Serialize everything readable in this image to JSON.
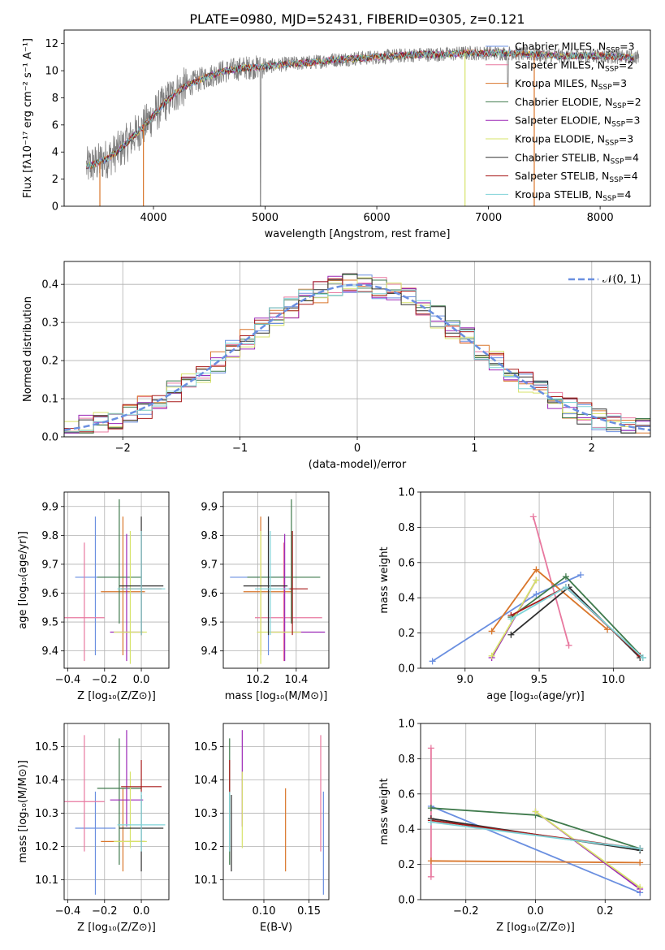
{
  "chart_data": [
    {
      "id": "spectrum",
      "type": "line",
      "title": "PLATE=0980, MJD=52431, FIBERID=0305, z=0.121",
      "xlabel": "wavelength [Angstrom, rest frame]",
      "ylabel": "Flux [fλ10⁻¹⁷ erg cm⁻² s⁻¹ A⁻¹]",
      "xlim": [
        3200,
        8450
      ],
      "ylim": [
        0,
        13
      ],
      "xticks": [
        4000,
        5000,
        6000,
        7000,
        8000
      ],
      "yticks": [
        0,
        2,
        4,
        6,
        8,
        10,
        12
      ],
      "legend_position": "upper right",
      "legend": [
        {
          "name": "Chabrier MILES, N",
          "sub": "SSP",
          "tail": "=3",
          "color": "#6a8fe0"
        },
        {
          "name": "Salpeter MILES, N",
          "sub": "SSP",
          "tail": "=2",
          "color": "#e8789f"
        },
        {
          "name": "Kroupa MILES, N",
          "sub": "SSP",
          "tail": "=3",
          "color": "#d9762b"
        },
        {
          "name": "Chabrier ELODIE, N",
          "sub": "SSP",
          "tail": "=2",
          "color": "#3f7a4c"
        },
        {
          "name": "Salpeter ELODIE, N",
          "sub": "SSP",
          "tail": "=3",
          "color": "#9b26b6"
        },
        {
          "name": "Kroupa ELODIE, N",
          "sub": "SSP",
          "tail": "=3",
          "color": "#d7e36a"
        },
        {
          "name": "Chabrier STELIB, N",
          "sub": "SSP",
          "tail": "=4",
          "color": "#303030"
        },
        {
          "name": "Salpeter STELIB, N",
          "sub": "SSP",
          "tail": "=4",
          "color": "#a81a1a"
        },
        {
          "name": "Kroupa STELIB, N",
          "sub": "SSP",
          "tail": "=4",
          "color": "#7fd3d8"
        }
      ],
      "continuum": {
        "x": [
          3400,
          3500,
          3600,
          3700,
          3800,
          3900,
          4000,
          4100,
          4200,
          4300,
          4400,
          4600,
          4800,
          5000,
          5200,
          5400,
          5600,
          5800,
          6000,
          6200,
          6400,
          6600,
          6800,
          7000,
          7200,
          7400,
          7600,
          7800,
          8000,
          8200,
          8400
        ],
        "y": [
          2.9,
          3.2,
          3.6,
          4.2,
          5.0,
          5.8,
          6.7,
          7.6,
          8.4,
          8.9,
          9.3,
          9.9,
          10.2,
          10.3,
          10.5,
          10.6,
          10.8,
          10.9,
          11.0,
          11.1,
          11.2,
          11.2,
          11.3,
          11.3,
          11.3,
          11.2,
          11.1,
          11.1,
          11.1,
          11.0,
          11.0
        ]
      },
      "data_color": "#808080"
    },
    {
      "id": "residuals",
      "type": "histogram",
      "xlabel": "(data-model)/error",
      "ylabel": "Normed distribution",
      "xlim": [
        -2.5,
        2.5
      ],
      "ylim": [
        0,
        0.46
      ],
      "xticks": [
        -2,
        -1,
        0,
        1,
        2
      ],
      "yticks": [
        0.0,
        0.1,
        0.2,
        0.3,
        0.4
      ],
      "legend_position": "upper right",
      "gaussian_label": "𝒩(0, 1)",
      "gaussian_color": "#6a8fe0",
      "bins": 40
    },
    {
      "id": "age_vs_Z",
      "type": "errorbar",
      "xlabel": "Z [log₁₀(Z/Z⊙)]",
      "ylabel": "age  [log₁₀(age/yr)]",
      "xlim": [
        -0.42,
        0.15
      ],
      "ylim": [
        9.34,
        9.95
      ],
      "xticks": [
        -0.4,
        -0.2,
        0.0
      ],
      "yticks": [
        9.4,
        9.5,
        9.6,
        9.7,
        9.8,
        9.9
      ]
    },
    {
      "id": "age_vs_mass",
      "type": "errorbar",
      "xlabel": "mass [log₁₀(M/M⊙)]",
      "ylabel": "",
      "xlim": [
        10.02,
        10.57
      ],
      "ylim": [
        9.34,
        9.95
      ],
      "xticks": [
        10.2,
        10.4
      ],
      "yticks": [
        9.4,
        9.5,
        9.6,
        9.7,
        9.8,
        9.9
      ]
    },
    {
      "id": "weight_vs_age",
      "type": "line",
      "xlabel": "age  [log₁₀(age/yr)]",
      "ylabel": "mass weight",
      "xlim": [
        8.7,
        10.25
      ],
      "ylim": [
        0,
        1.0
      ],
      "xticks": [
        9.0,
        9.5,
        10.0
      ],
      "yticks": [
        0.0,
        0.2,
        0.4,
        0.6,
        0.8,
        1.0
      ]
    },
    {
      "id": "mass_vs_Z",
      "type": "errorbar",
      "xlabel": "Z [log₁₀(Z/Z⊙)]",
      "ylabel": "mass [log₁₀(M/M⊙)]",
      "xlim": [
        -0.42,
        0.15
      ],
      "ylim": [
        10.04,
        10.57
      ],
      "xticks": [
        -0.4,
        -0.2,
        0.0
      ],
      "yticks": [
        10.1,
        10.2,
        10.3,
        10.4,
        10.5
      ]
    },
    {
      "id": "mass_vs_ebv",
      "type": "errorbar",
      "xlabel": "E(B-V)",
      "ylabel": "",
      "xlim": [
        0.055,
        0.172
      ],
      "ylim": [
        10.04,
        10.57
      ],
      "xticks": [
        0.05,
        0.1,
        0.15
      ],
      "yticks": [
        10.1,
        10.2,
        10.3,
        10.4,
        10.5
      ]
    },
    {
      "id": "weight_vs_Z",
      "type": "line",
      "xlabel": "Z [log₁₀(Z/Z⊙)]",
      "ylabel": "mass weight",
      "xlim": [
        -0.33,
        0.33
      ],
      "ylim": [
        0,
        1.0
      ],
      "xticks": [
        -0.2,
        0.0,
        0.2
      ],
      "yticks": [
        0.0,
        0.2,
        0.4,
        0.6,
        0.8,
        1.0
      ]
    }
  ],
  "fits": [
    {
      "color": "#6a8fe0",
      "Z": -0.25,
      "Zerr": 0.11,
      "age": 9.655,
      "aerr": [
        0.27,
        0.21
      ],
      "mass": 10.255,
      "merr": [
        0.2,
        0.11
      ],
      "ebv": 0.166,
      "weights_age": [
        [
          8.78,
          0.04
        ],
        [
          9.48,
          0.42
        ],
        [
          9.78,
          0.53
        ]
      ],
      "weights_Z": [
        [
          -0.3,
          0.53
        ],
        [
          0.3,
          0.04
        ]
      ]
    },
    {
      "color": "#e8789f",
      "Z": -0.31,
      "Zerr": 0.11,
      "age": 9.515,
      "aerr": [
        0.15,
        0.26
      ],
      "mass": 10.335,
      "merr": [
        0.15,
        0.2
      ],
      "ebv": 0.163,
      "weights_age": [
        [
          9.46,
          0.86
        ],
        [
          9.7,
          0.13
        ]
      ],
      "weights_Z": [
        [
          -0.3,
          0.86
        ],
        [
          -0.3,
          0.13
        ]
      ]
    },
    {
      "color": "#d9762b",
      "Z": -0.1,
      "Zerr": 0.12,
      "age": 9.605,
      "aerr": [
        0.22,
        0.26
      ],
      "mass": 10.215,
      "merr": [
        0.09,
        0.16
      ],
      "ebv": 0.124,
      "weights_age": [
        [
          9.18,
          0.21
        ],
        [
          9.48,
          0.56
        ],
        [
          9.96,
          0.22
        ]
      ],
      "weights_Z": [
        [
          -0.3,
          0.22
        ],
        [
          0.3,
          0.21
        ]
      ]
    },
    {
      "color": "#3f7a4c",
      "Z": -0.12,
      "Zerr": 0.12,
      "age": 9.655,
      "aerr": [
        0.16,
        0.27
      ],
      "mass": 10.375,
      "merr": [
        0.23,
        0.15
      ],
      "ebv": 0.062,
      "weights_age": [
        [
          9.31,
          0.29
        ],
        [
          9.68,
          0.52
        ],
        [
          10.2,
          0.06
        ]
      ],
      "weights_Z": [
        [
          -0.3,
          0.52
        ],
        [
          0.0,
          0.48
        ],
        [
          0.3,
          0.29
        ]
      ]
    },
    {
      "color": "#9b26b6",
      "Z": -0.08,
      "Zerr": 0.09,
      "age": 9.465,
      "aerr": [
        0.1,
        0.34
      ],
      "mass": 10.34,
      "merr": [
        0.08,
        0.21
      ],
      "ebv": 0.076,
      "weights_age": [
        [
          9.18,
          0.06
        ],
        [
          9.48,
          0.5
        ]
      ],
      "weights_Z": [
        [
          0.0,
          0.5
        ],
        [
          0.3,
          0.06
        ]
      ]
    },
    {
      "color": "#d7e36a",
      "Z": -0.06,
      "Zerr": 0.09,
      "age": 9.465,
      "aerr": [
        0.11,
        0.35
      ],
      "mass": 10.215,
      "merr": [
        0.02,
        0.21
      ],
      "ebv": 0.076,
      "weights_age": [
        [
          9.18,
          0.07
        ],
        [
          9.48,
          0.5
        ]
      ],
      "weights_Z": [
        [
          0.0,
          0.5
        ],
        [
          0.3,
          0.07
        ]
      ]
    },
    {
      "color": "#303030",
      "Z": 0.0,
      "Zerr": 0.12,
      "age": 9.625,
      "aerr": [
        0.17,
        0.24
      ],
      "mass": 10.255,
      "merr": [
        0.13,
        0.1
      ],
      "ebv": 0.064,
      "weights_age": [
        [
          9.31,
          0.19
        ],
        [
          9.7,
          0.46
        ],
        [
          10.18,
          0.06
        ]
      ],
      "weights_Z": [
        [
          -0.3,
          0.46
        ],
        [
          0.3,
          0.28
        ]
      ]
    },
    {
      "color": "#a81a1a",
      "Z": 0.0,
      "Zerr": 0.11,
      "age": 9.615,
      "aerr": [
        0.16,
        0.2
      ],
      "mass": 10.38,
      "merr": [
        0.02,
        0.08
      ],
      "ebv": 0.062,
      "weights_age": [
        [
          9.31,
          0.3
        ],
        [
          9.68,
          0.46
        ],
        [
          10.18,
          0.07
        ]
      ],
      "weights_Z": [
        [
          -0.3,
          0.45
        ],
        [
          0.3,
          0.29
        ]
      ]
    },
    {
      "color": "#7fd3d8",
      "Z": 0.0,
      "Zerr": 0.13,
      "age": 9.615,
      "aerr": [
        0.16,
        0.2
      ],
      "mass": 10.265,
      "merr": [
        0.08,
        0.1
      ],
      "ebv": 0.062,
      "weights_age": [
        [
          9.31,
          0.28
        ],
        [
          9.68,
          0.46
        ],
        [
          10.2,
          0.06
        ]
      ],
      "weights_Z": [
        [
          -0.3,
          0.44
        ],
        [
          0.3,
          0.29
        ]
      ]
    }
  ]
}
